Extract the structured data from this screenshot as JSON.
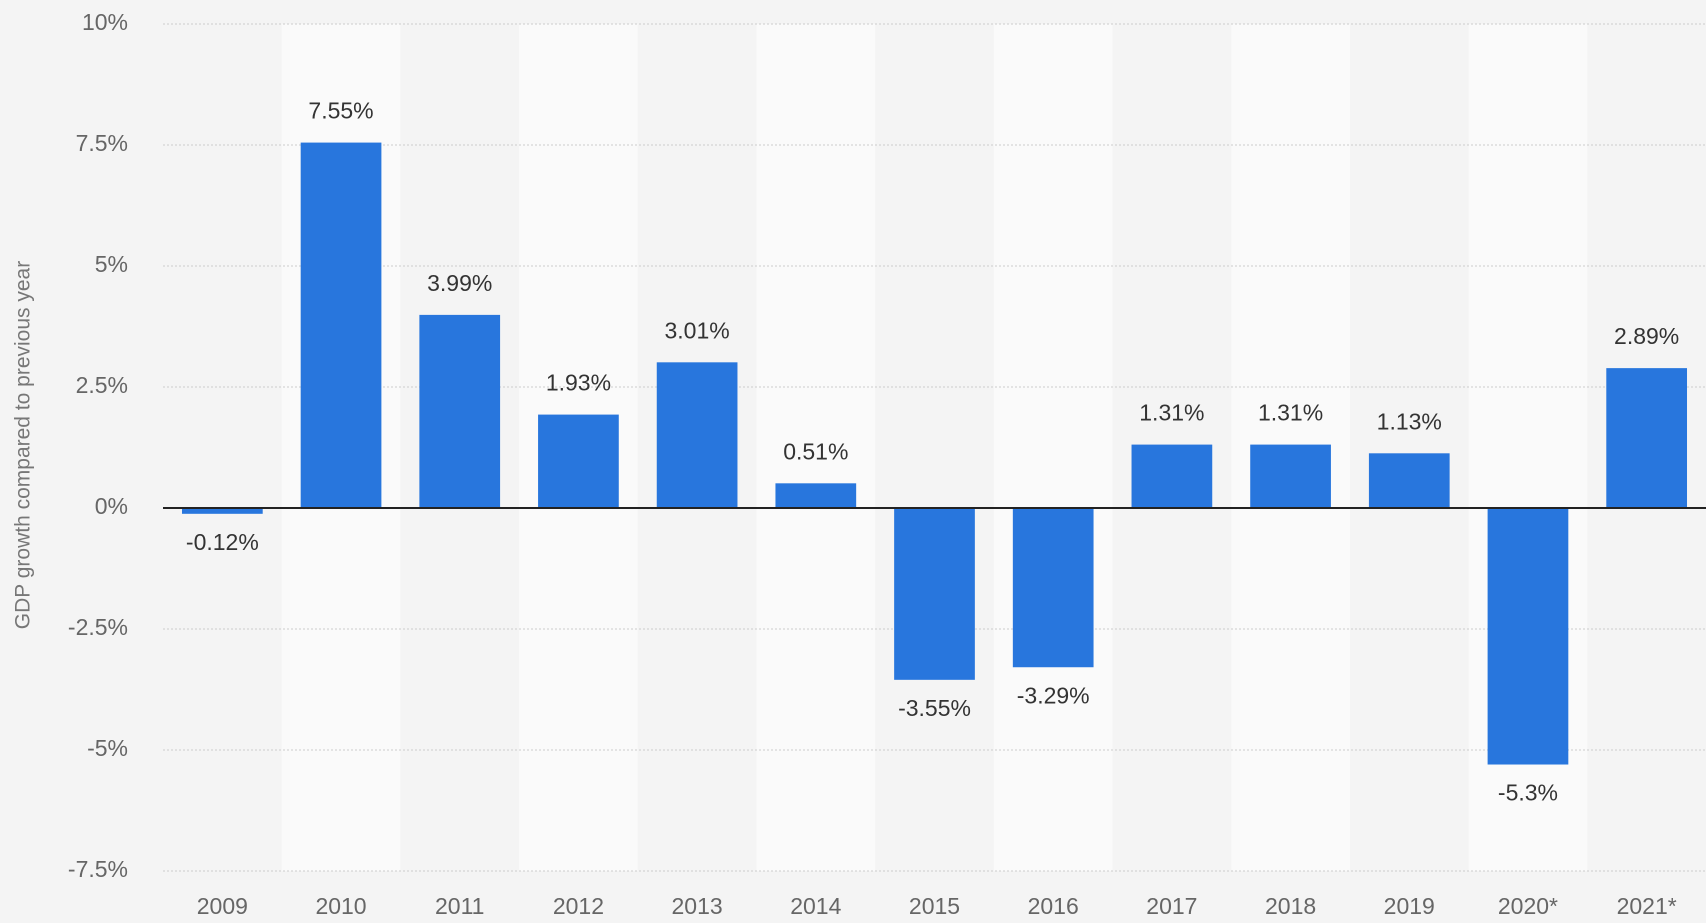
{
  "chart_data": {
    "type": "bar",
    "y_label": "GDP growth compared to previous year",
    "categories": [
      "2009",
      "2010",
      "2011",
      "2012",
      "2013",
      "2014",
      "2015",
      "2016",
      "2017",
      "2018",
      "2019",
      "2020*",
      "2021*"
    ],
    "values": [
      -0.12,
      7.55,
      3.99,
      1.93,
      3.01,
      0.51,
      -3.55,
      -3.29,
      1.31,
      1.31,
      1.13,
      -5.3,
      2.89
    ],
    "value_labels": [
      "-0.12%",
      "7.55%",
      "3.99%",
      "1.93%",
      "3.01%",
      "0.51%",
      "-3.55%",
      "-3.29%",
      "1.31%",
      "1.31%",
      "1.13%",
      "-5.3%",
      "2.89%"
    ],
    "color": "#2876dd",
    "ylim": [
      -7.5,
      10
    ],
    "yticks": [
      {
        "value": -7.5,
        "label": "-7.5%"
      },
      {
        "value": -5,
        "label": "-5%"
      },
      {
        "value": -2.5,
        "label": "-2.5%"
      },
      {
        "value": 0,
        "label": "0%"
      },
      {
        "value": 2.5,
        "label": "2.5%"
      },
      {
        "value": 5,
        "label": "5%"
      },
      {
        "value": 7.5,
        "label": "7.5%"
      },
      {
        "value": 10,
        "label": "10%"
      }
    ],
    "grid": true
  }
}
